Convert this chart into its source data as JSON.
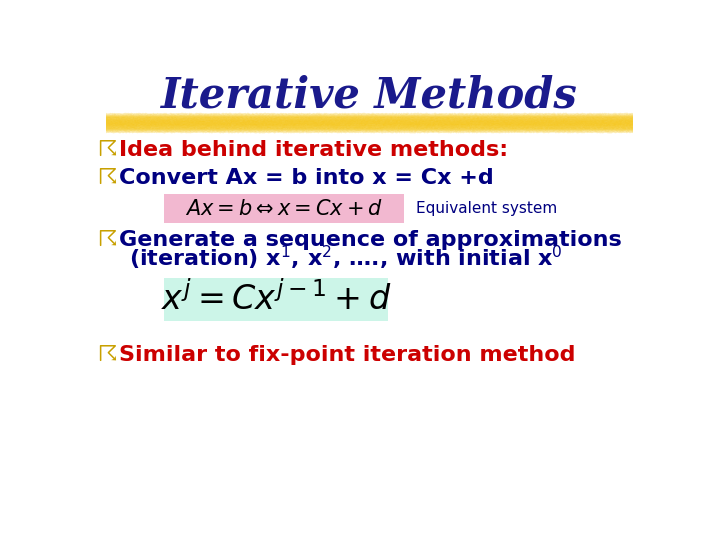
{
  "background_color": "#ffffff",
  "title": "Iterative Methods",
  "title_color": "#1a1a8c",
  "title_fontsize": 30,
  "highlight_color": "#F5C518",
  "bullet_color": "#c8a000",
  "bullet_char": "☈",
  "line1_color": "#cc0000",
  "line1_text": "Idea behind iterative methods:",
  "line2_color": "#000080",
  "line2_text": "Convert Ax = b into x = Cx +d",
  "eq1_box_color": "#f2b8d0",
  "eq1_text": "$Ax = b  \\Leftrightarrow  x = Cx + d$",
  "eq1_note": "Equivalent system",
  "eq1_note_color": "#000080",
  "line3_color": "#000080",
  "line3_text": "Generate a sequence of approximations",
  "line3b_text": "(iteration) x$^1$, x$^2$, …., with initial x$^0$",
  "eq2_box_color": "#ccf5e8",
  "eq2_text": "$x^{j} = Cx^{j-1} + d$",
  "line4_color": "#cc0000",
  "line4_text": "Similar to fix-point iteration method",
  "fontsize_body": 16,
  "fontsize_eq1": 15,
  "fontsize_eq2": 24
}
